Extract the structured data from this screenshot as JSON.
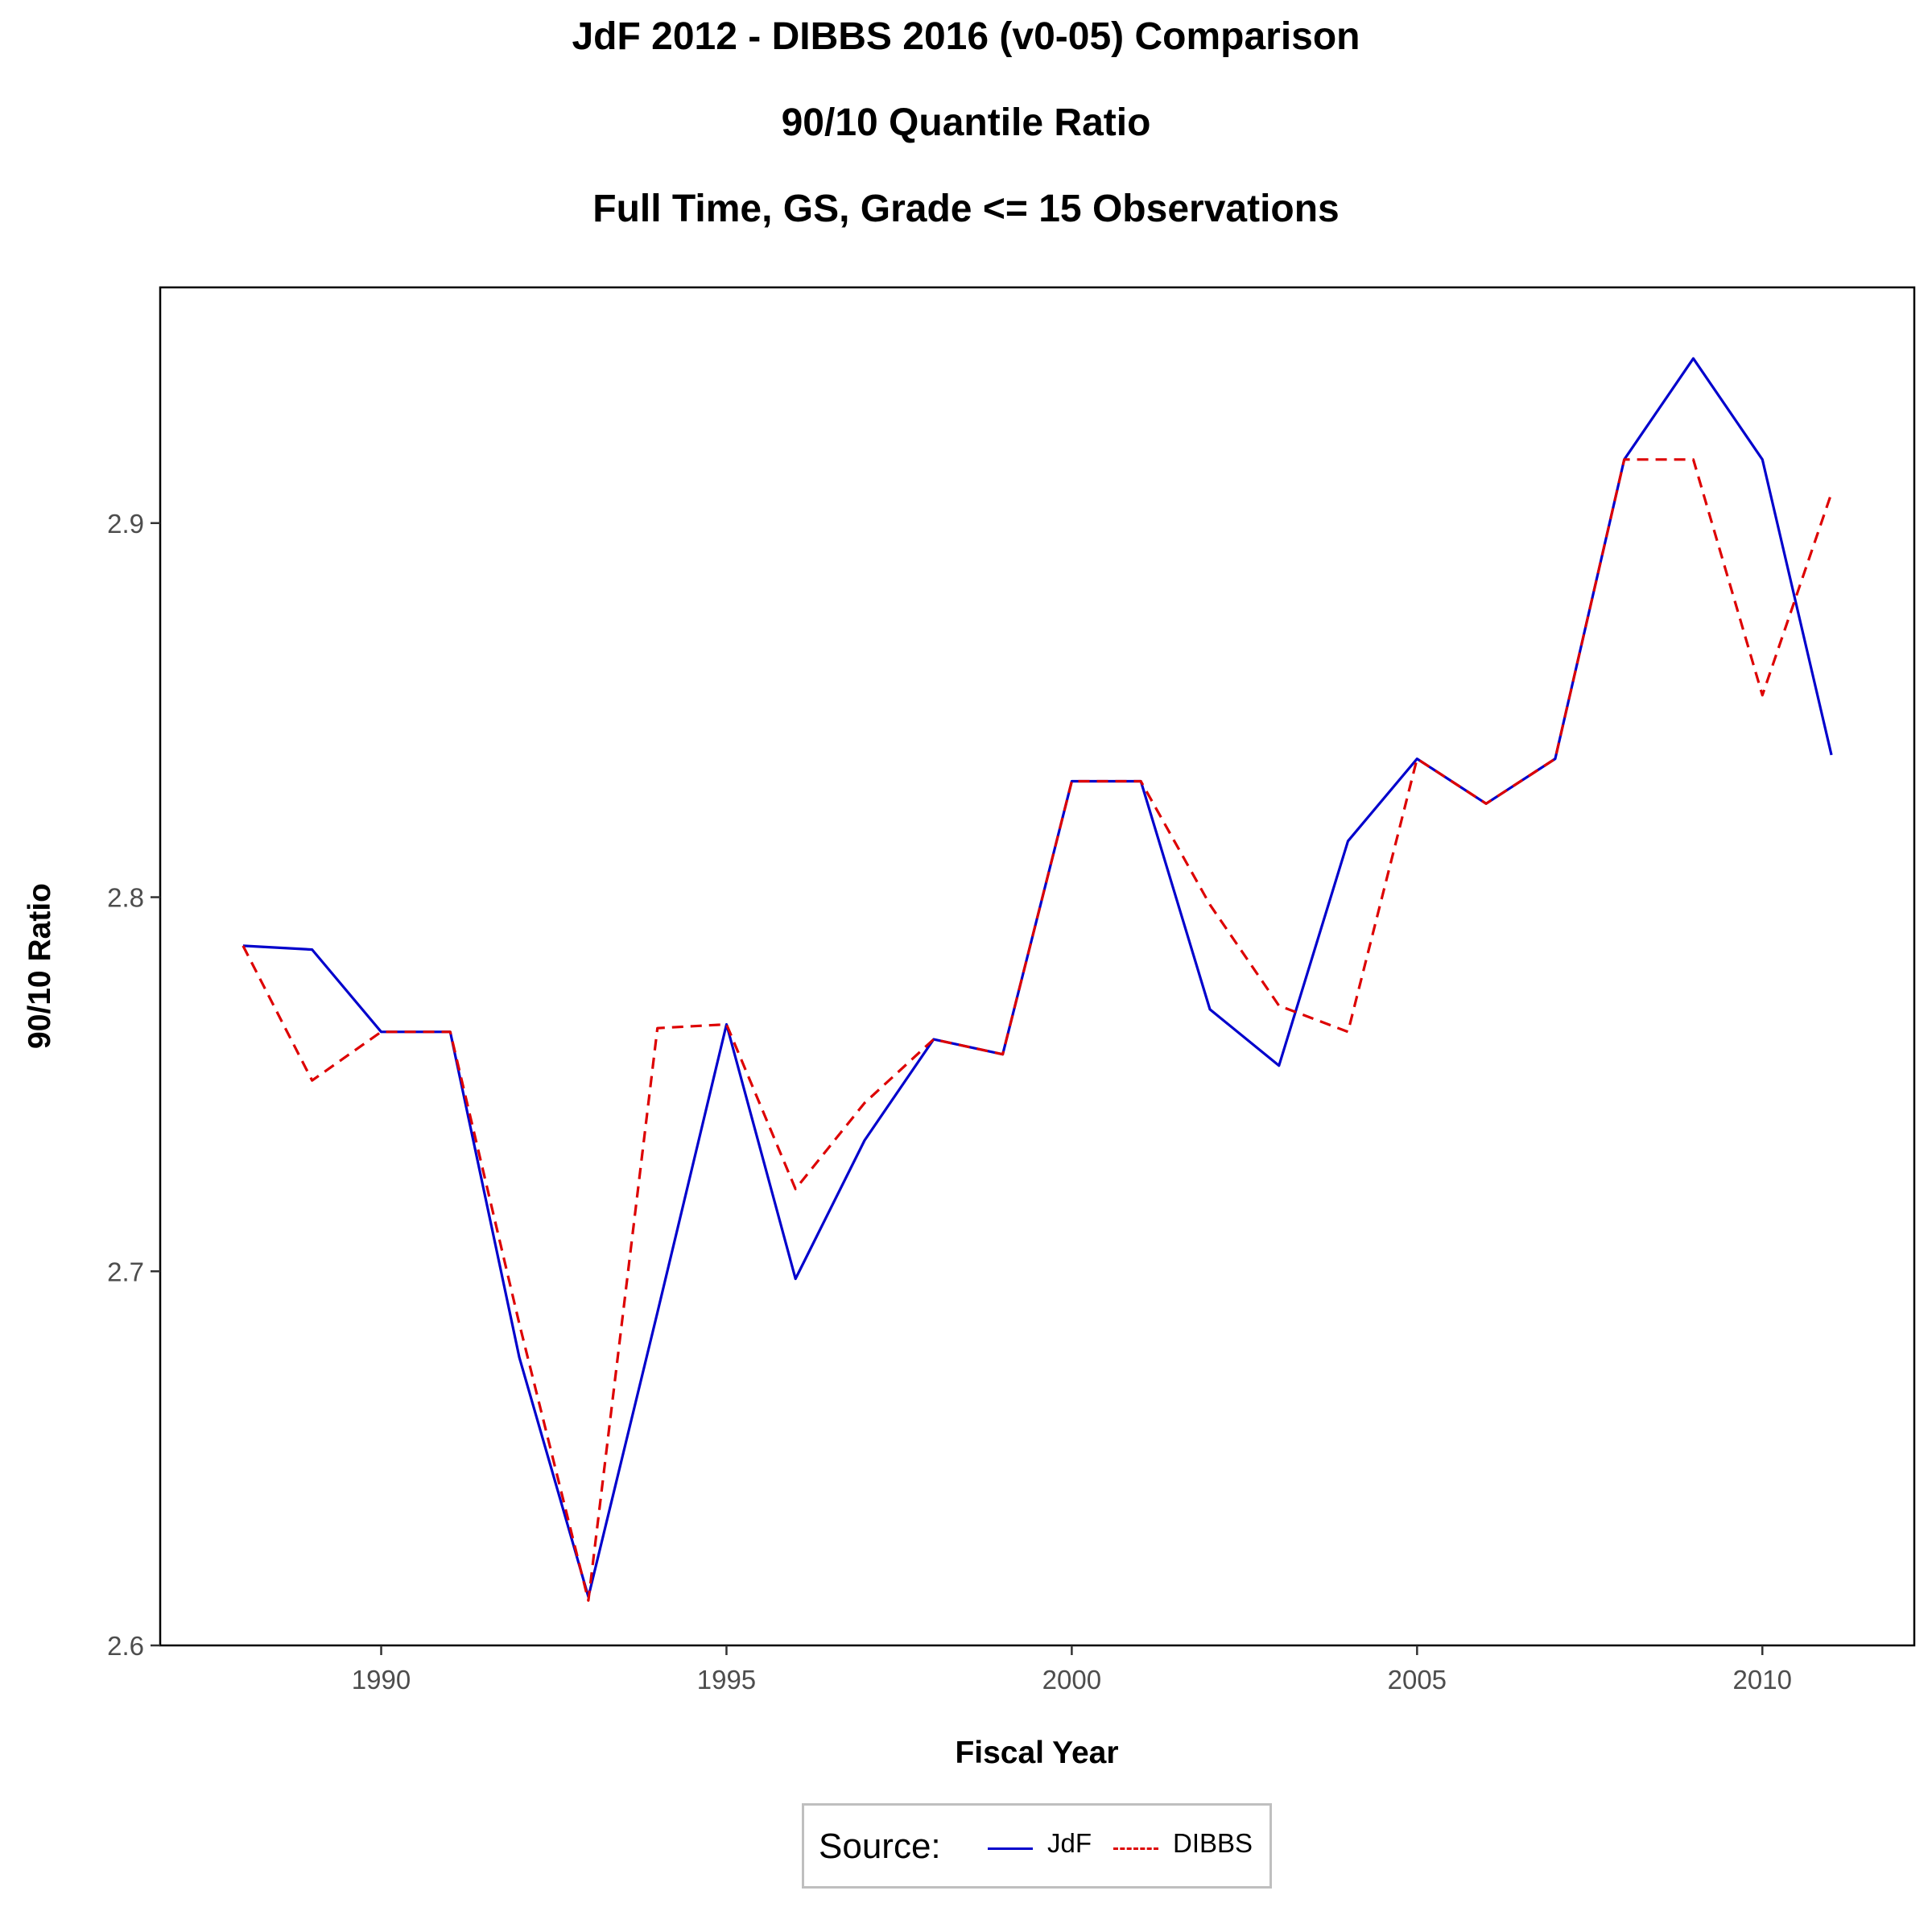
{
  "chart_data": {
    "type": "line",
    "title": "JdF 2012 - DIBBS 2016 (v0-05) Comparison",
    "subtitle": "90/10 Quantile Ratio",
    "subtitle2": "Full Time, GS, Grade <= 15 Observations",
    "xlabel": "Fiscal Year",
    "ylabel": "90/10 Ratio",
    "xlim": [
      1986.8,
      2012.2
    ],
    "ylim": [
      2.6,
      2.963
    ],
    "x_ticks": [
      "1990",
      "1995",
      "2000",
      "2005",
      "2010"
    ],
    "y_ticks": [
      "2.6",
      "2.7",
      "2.8",
      "2.9"
    ],
    "grid": false,
    "legend_position": "bottom",
    "legend_title": "Source:",
    "x": [
      1988,
      1989,
      1990,
      1991,
      1992,
      1993,
      1994,
      1995,
      1996,
      1997,
      1998,
      1999,
      2000,
      2001,
      2002,
      2003,
      2004,
      2005,
      2006,
      2007,
      2008,
      2009,
      2010,
      2011
    ],
    "series": [
      {
        "name": "JdF",
        "color": "#0000cc",
        "dash": "solid",
        "values": [
          2.787,
          2.786,
          2.764,
          2.764,
          2.677,
          2.613,
          2.689,
          2.766,
          2.698,
          2.735,
          2.762,
          2.758,
          2.831,
          2.831,
          2.77,
          2.755,
          2.815,
          2.837,
          2.825,
          2.837,
          2.917,
          2.944,
          2.917,
          2.838
        ]
      },
      {
        "name": "DIBBS",
        "color": "#dd0000",
        "dash": "dashed",
        "values": [
          2.787,
          2.751,
          2.764,
          2.764,
          2.686,
          2.612,
          2.765,
          2.766,
          2.722,
          2.745,
          2.762,
          2.758,
          2.831,
          2.831,
          2.798,
          2.771,
          2.764,
          2.837,
          2.825,
          2.837,
          2.917,
          2.917,
          2.854,
          2.908
        ]
      }
    ]
  }
}
